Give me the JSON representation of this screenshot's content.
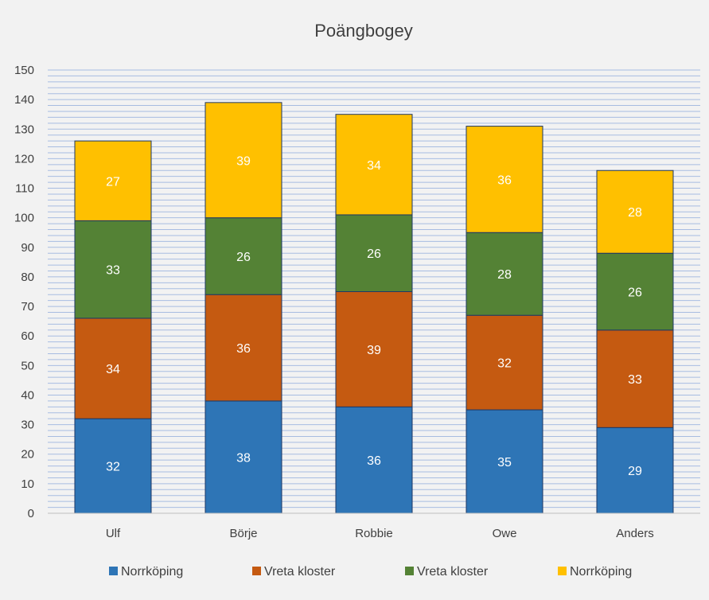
{
  "chart_data": {
    "type": "bar",
    "stacked": true,
    "title": "Poängbogey",
    "categories": [
      "Ulf",
      "Börje",
      "Robbie",
      "Owe",
      "Anders"
    ],
    "ylim": [
      0,
      150
    ],
    "yticks": [
      0,
      10,
      20,
      30,
      40,
      50,
      60,
      70,
      80,
      90,
      100,
      110,
      120,
      130,
      140,
      150
    ],
    "minor_grid_step": 2,
    "grid": true,
    "legend_position": "bottom",
    "series": [
      {
        "name": "Norrköping",
        "color": "#2e75b6",
        "values": [
          32,
          38,
          36,
          35,
          29
        ]
      },
      {
        "name": "Vreta kloster",
        "color": "#c55a11",
        "values": [
          34,
          36,
          39,
          32,
          33
        ]
      },
      {
        "name": "Vreta kloster",
        "color": "#548235",
        "values": [
          33,
          26,
          26,
          28,
          26
        ]
      },
      {
        "name": "Norrköping",
        "color": "#ffc000",
        "values": [
          27,
          39,
          34,
          36,
          28
        ]
      }
    ],
    "grid_color": "#8faadc",
    "border_color": "#1f3864",
    "label_color": "#ffffff"
  }
}
